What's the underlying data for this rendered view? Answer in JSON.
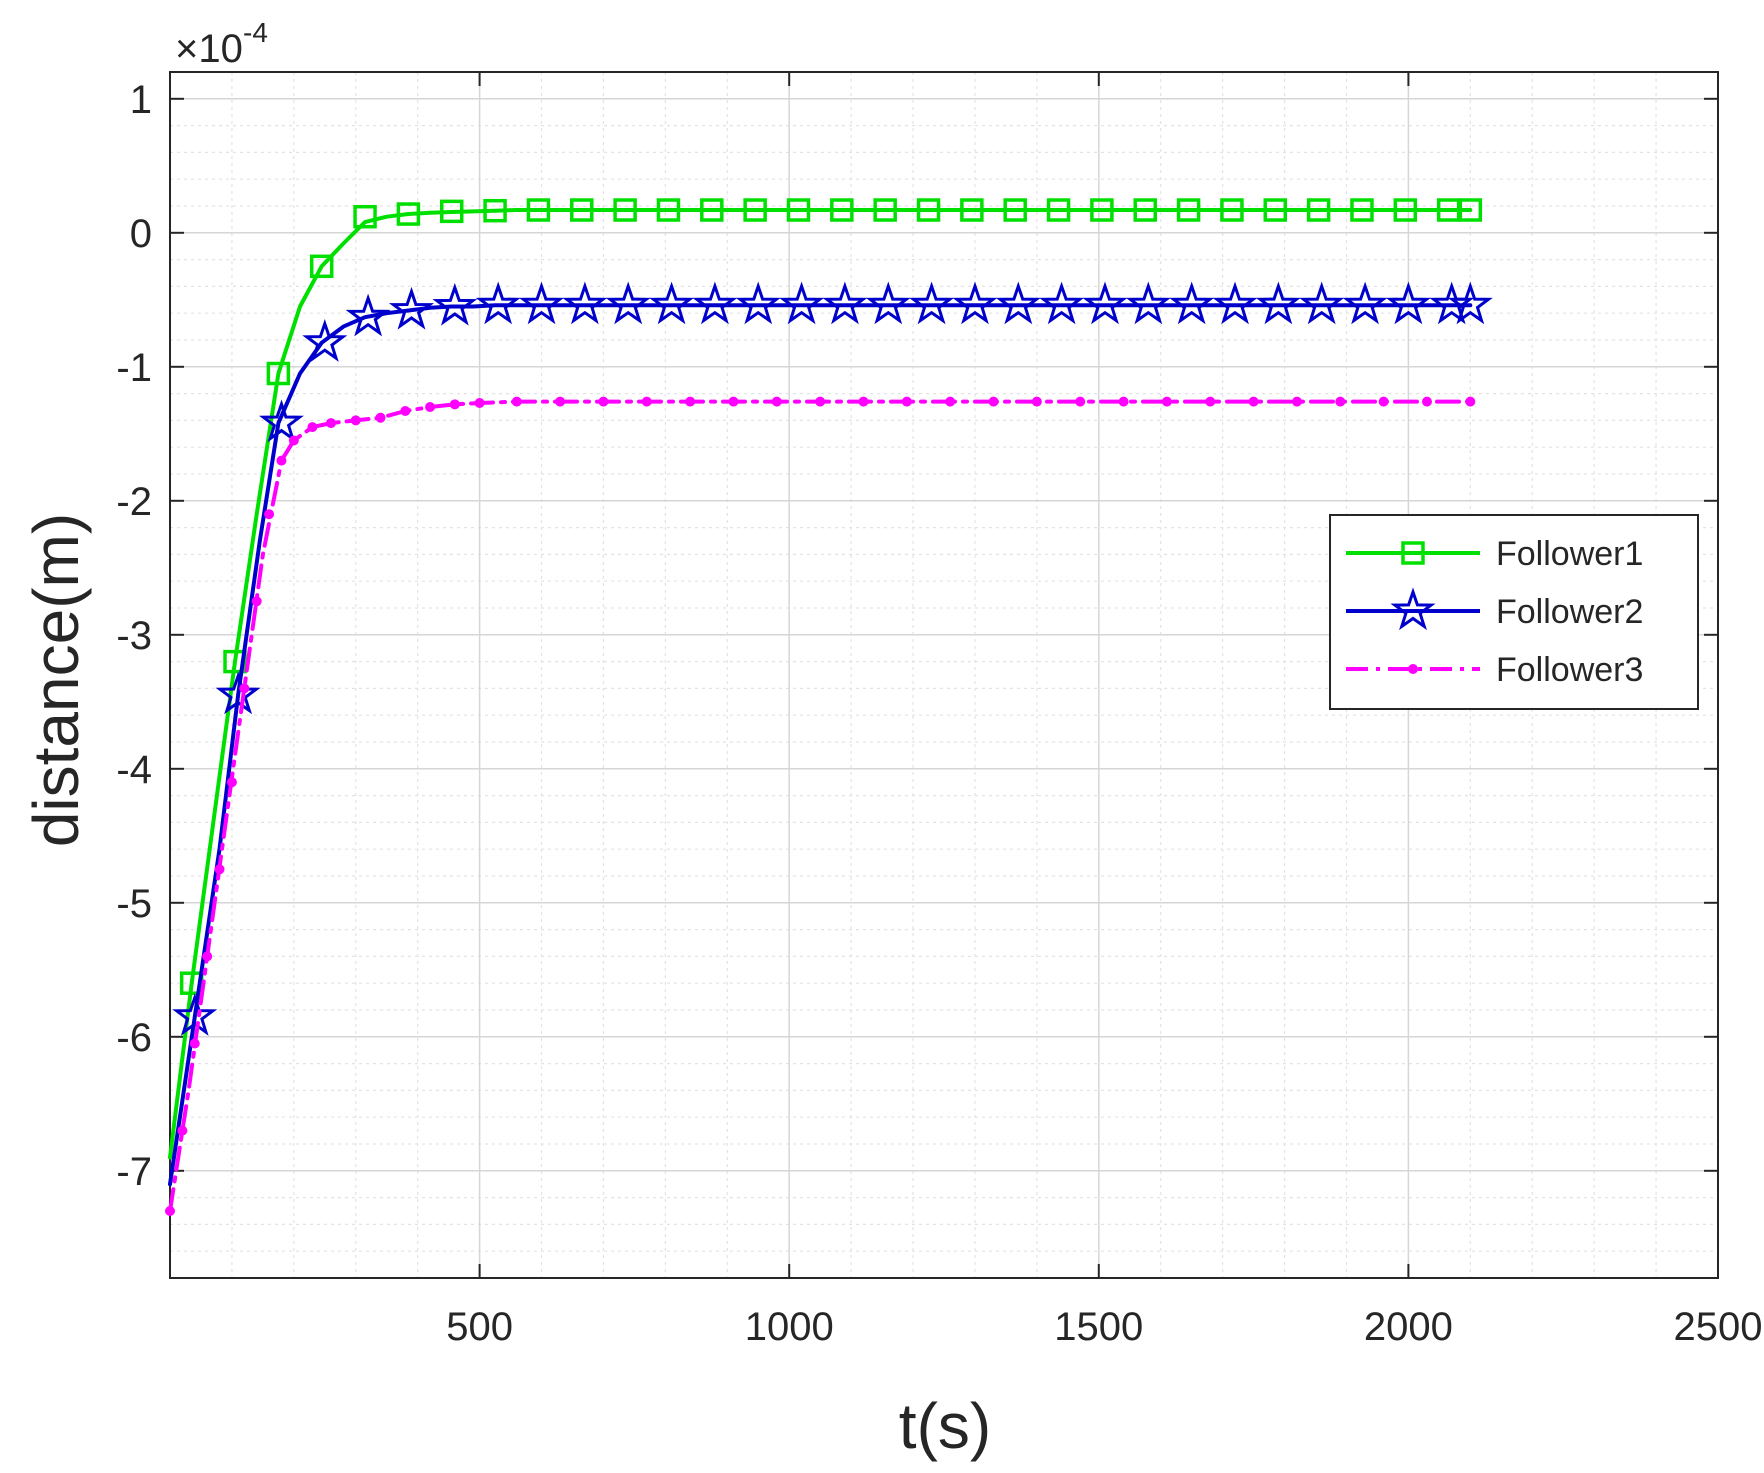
{
  "chart_data": {
    "type": "line",
    "xlabel": "t(s)",
    "ylabel": "distance(m)",
    "y_exponent_prefix": "×10",
    "y_exponent": "-4",
    "xlim": [
      0,
      2500
    ],
    "ylim": [
      -7.8,
      1.2
    ],
    "x_ticks": [
      500,
      1000,
      1500,
      2000,
      2500
    ],
    "y_ticks": [
      1,
      0,
      -1,
      -2,
      -3,
      -4,
      -5,
      -6,
      -7
    ],
    "x_tick_labels": [
      "500",
      "1000",
      "1500",
      "2000",
      "2500"
    ],
    "y_tick_labels": [
      "1",
      "0",
      "-1",
      "-2",
      "-3",
      "-4",
      "-5",
      "-6",
      "-7"
    ],
    "grid": true,
    "minor_grid": true,
    "legend_position": "right-middle",
    "series": [
      {
        "name": "Follower1",
        "color": "#00e000",
        "line_style": "solid",
        "marker": "square",
        "x": [
          0,
          35,
          70,
          105,
          140,
          175,
          210,
          245,
          280,
          315,
          350,
          385,
          420,
          455,
          490,
          525,
          560,
          600,
          700,
          800,
          1000,
          1200,
          1500,
          1800,
          2100
        ],
        "y": [
          -6.9,
          -5.6,
          -4.4,
          -3.2,
          -2.1,
          -1.05,
          -0.55,
          -0.25,
          -0.08,
          0.08,
          0.12,
          0.14,
          0.15,
          0.155,
          0.16,
          0.165,
          0.17,
          0.17,
          0.17,
          0.17,
          0.17,
          0.17,
          0.17,
          0.17,
          0.17
        ],
        "marker_x": [
          35,
          105,
          175,
          245,
          315,
          385,
          455,
          525,
          595,
          665,
          735,
          805,
          875,
          945,
          1015,
          1085,
          1155,
          1225,
          1295,
          1365,
          1435,
          1505,
          1575,
          1645,
          1715,
          1785,
          1855,
          1925,
          1995,
          2065,
          2100
        ],
        "marker_y": [
          -5.6,
          -3.2,
          -1.05,
          -0.25,
          0.12,
          0.14,
          0.16,
          0.165,
          0.17,
          0.17,
          0.17,
          0.17,
          0.17,
          0.17,
          0.17,
          0.17,
          0.17,
          0.17,
          0.17,
          0.17,
          0.17,
          0.17,
          0.17,
          0.17,
          0.17,
          0.17,
          0.17,
          0.17,
          0.17,
          0.17,
          0.17
        ]
      },
      {
        "name": "Follower2",
        "color": "#0000cc",
        "line_style": "solid",
        "marker": "star",
        "x": [
          0,
          40,
          80,
          110,
          145,
          175,
          210,
          245,
          280,
          315,
          350,
          385,
          420,
          455,
          490,
          525,
          560,
          600,
          700,
          800,
          1000,
          1200,
          1500,
          1800,
          2100
        ],
        "y": [
          -7.1,
          -5.85,
          -4.6,
          -3.45,
          -2.3,
          -1.42,
          -1.05,
          -0.82,
          -0.7,
          -0.63,
          -0.6,
          -0.58,
          -0.56,
          -0.55,
          -0.55,
          -0.54,
          -0.54,
          -0.54,
          -0.54,
          -0.54,
          -0.54,
          -0.54,
          -0.54,
          -0.54,
          -0.54
        ],
        "marker_x": [
          40,
          110,
          180,
          250,
          320,
          390,
          460,
          530,
          600,
          670,
          740,
          810,
          880,
          950,
          1020,
          1090,
          1160,
          1230,
          1300,
          1370,
          1440,
          1510,
          1580,
          1650,
          1720,
          1790,
          1860,
          1930,
          2000,
          2070,
          2100
        ],
        "marker_y": [
          -5.85,
          -3.45,
          -1.42,
          -0.82,
          -0.63,
          -0.58,
          -0.55,
          -0.54,
          -0.54,
          -0.54,
          -0.54,
          -0.54,
          -0.54,
          -0.54,
          -0.54,
          -0.54,
          -0.54,
          -0.54,
          -0.54,
          -0.54,
          -0.54,
          -0.54,
          -0.54,
          -0.54,
          -0.54,
          -0.54,
          -0.54,
          -0.54,
          -0.54,
          -0.54,
          -0.54
        ]
      },
      {
        "name": "Follower3",
        "color": "#ff00ff",
        "line_style": "dashdot",
        "marker": "dot",
        "x": [
          0,
          30,
          60,
          90,
          120,
          150,
          180,
          200,
          230,
          260,
          300,
          340,
          380,
          420,
          460,
          500,
          560,
          700,
          900,
          1200,
          1500,
          1800,
          2100
        ],
        "y": [
          -7.3,
          -6.4,
          -5.4,
          -4.4,
          -3.4,
          -2.4,
          -1.7,
          -1.55,
          -1.45,
          -1.42,
          -1.4,
          -1.38,
          -1.33,
          -1.3,
          -1.28,
          -1.27,
          -1.26,
          -1.26,
          -1.26,
          -1.26,
          -1.26,
          -1.26,
          -1.26
        ],
        "marker_x": [
          0,
          20,
          40,
          60,
          80,
          100,
          120,
          140,
          160,
          180,
          200,
          230,
          260,
          300,
          340,
          380,
          420,
          460,
          500,
          560,
          630,
          700,
          770,
          840,
          910,
          980,
          1050,
          1120,
          1190,
          1260,
          1330,
          1400,
          1470,
          1540,
          1610,
          1680,
          1750,
          1820,
          1890,
          1960,
          2030,
          2100
        ],
        "marker_y": [
          -7.3,
          -6.7,
          -6.05,
          -5.4,
          -4.75,
          -4.1,
          -3.4,
          -2.75,
          -2.1,
          -1.7,
          -1.55,
          -1.45,
          -1.42,
          -1.4,
          -1.38,
          -1.33,
          -1.3,
          -1.28,
          -1.27,
          -1.26,
          -1.26,
          -1.26,
          -1.26,
          -1.26,
          -1.26,
          -1.26,
          -1.26,
          -1.26,
          -1.26,
          -1.26,
          -1.26,
          -1.26,
          -1.26,
          -1.26,
          -1.26,
          -1.26,
          -1.26,
          -1.26,
          -1.26,
          -1.26,
          -1.26,
          -1.26
        ]
      }
    ]
  }
}
